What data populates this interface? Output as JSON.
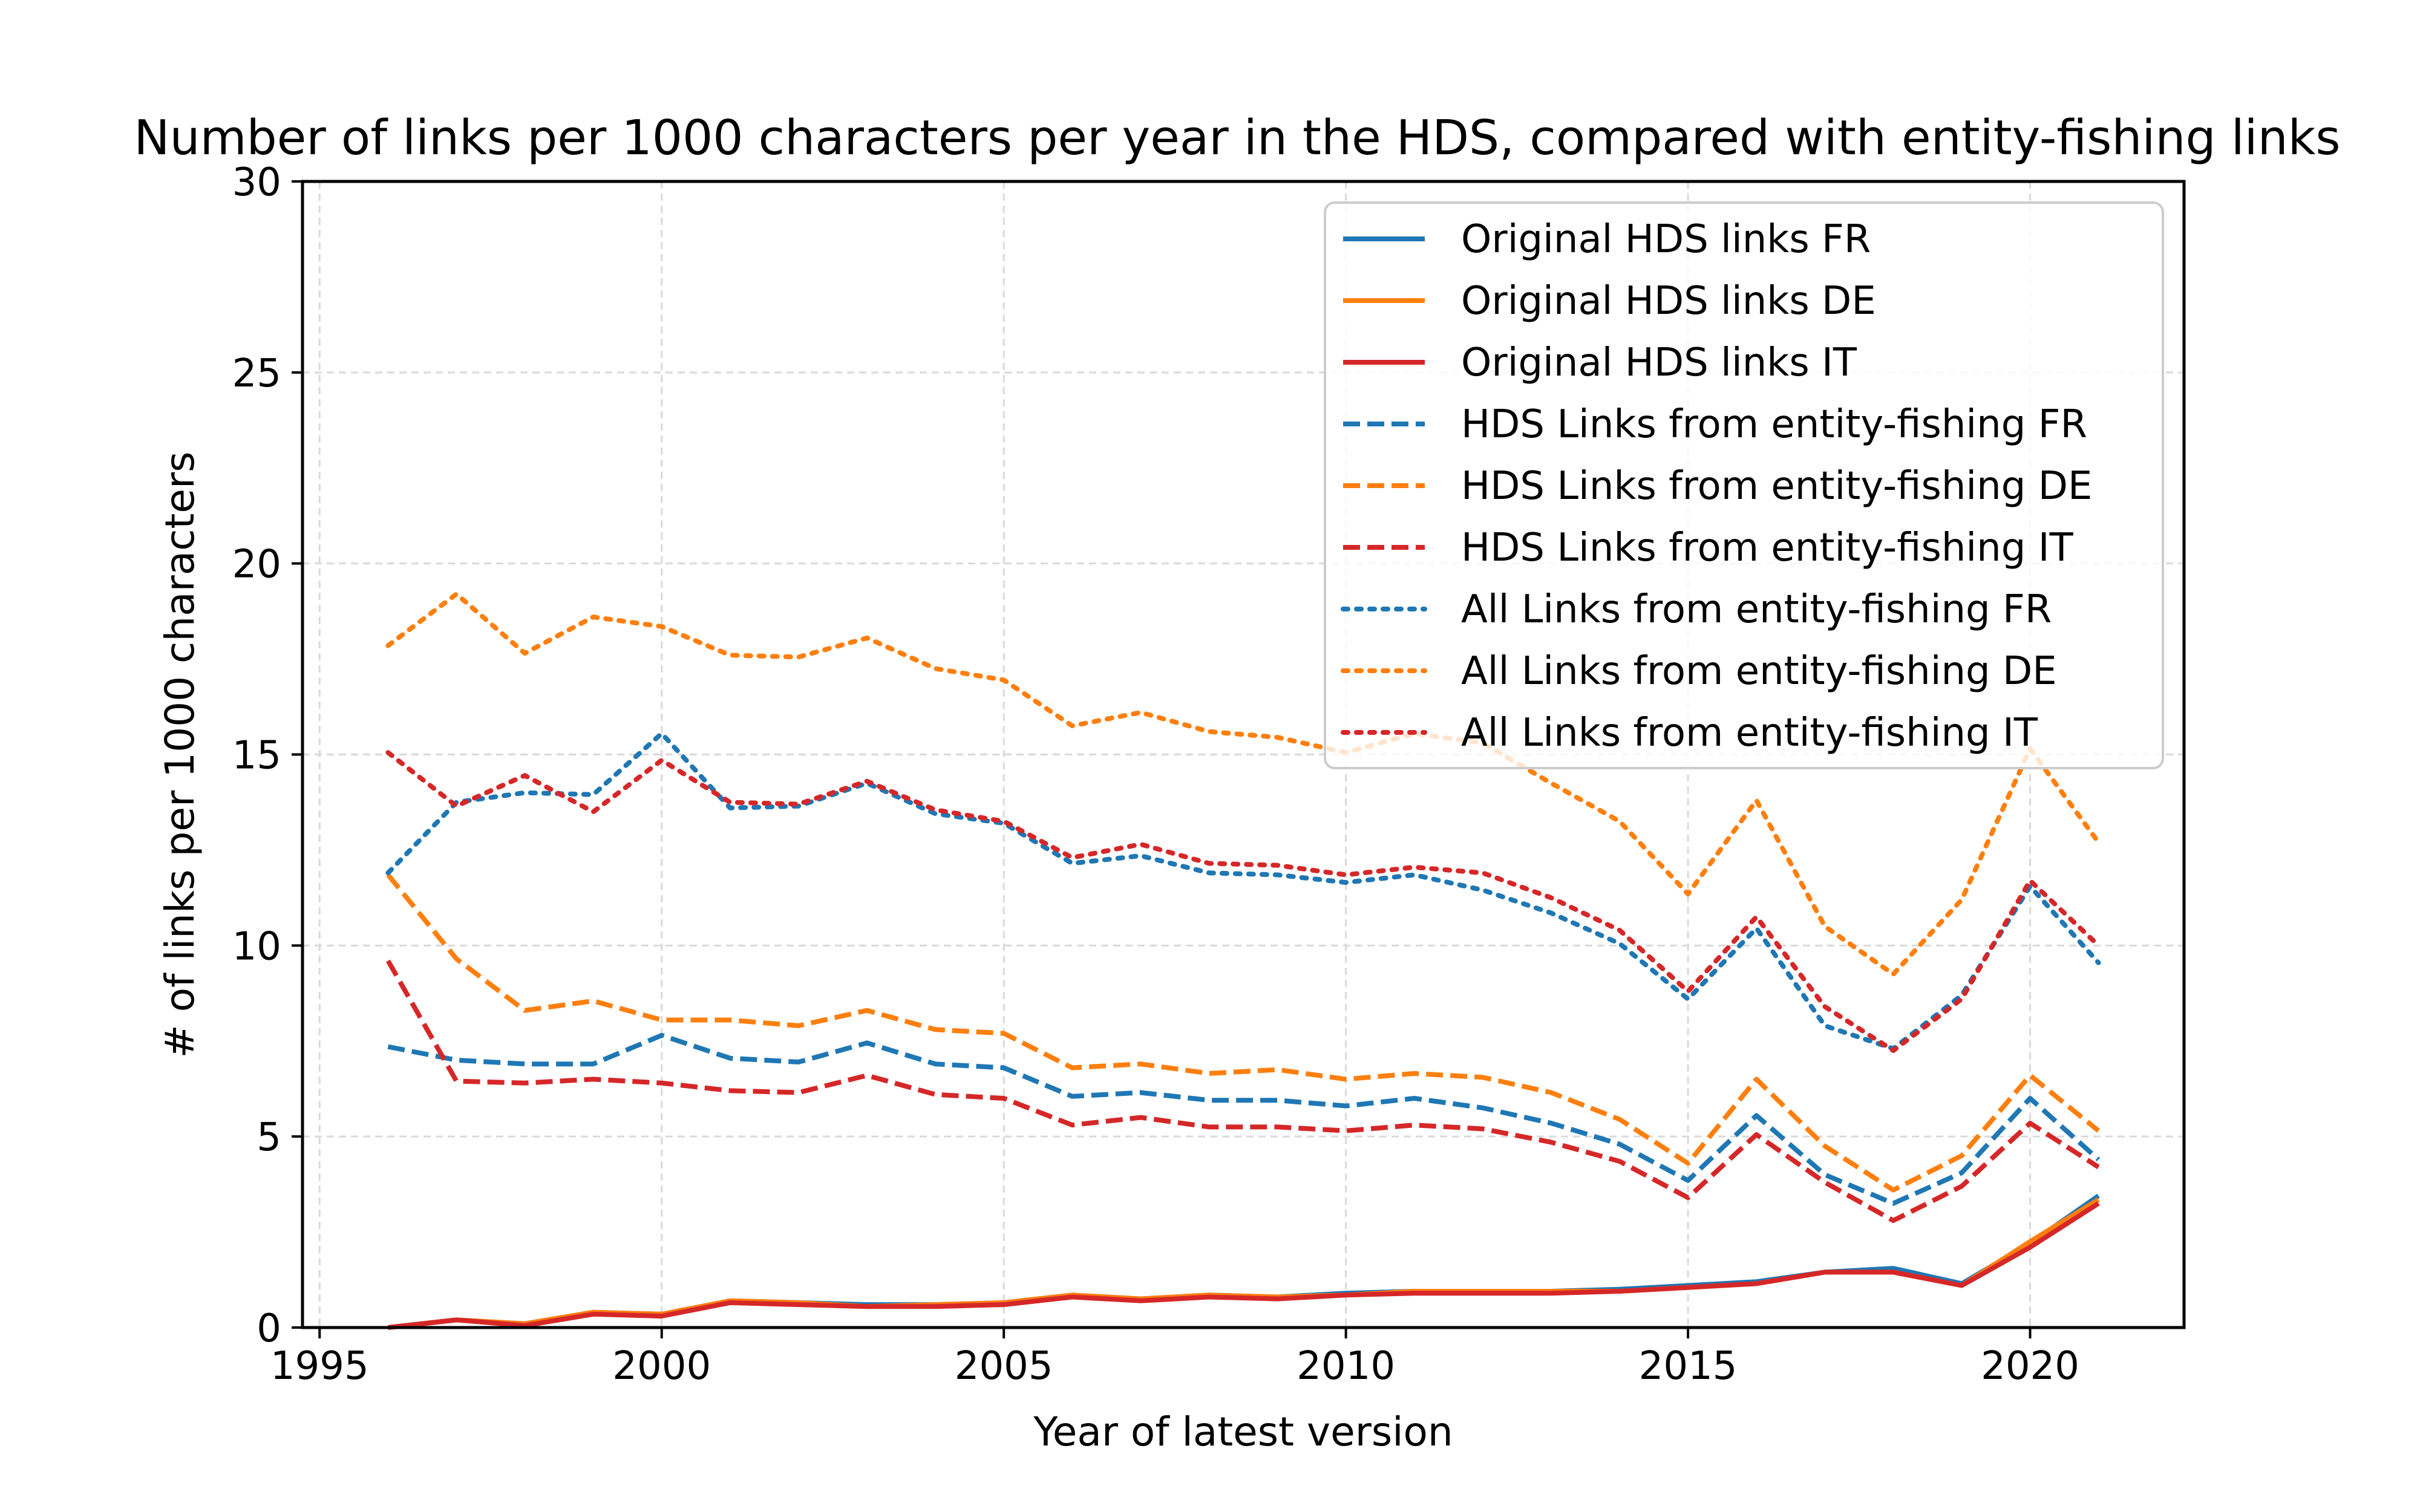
{
  "chart_data": {
    "type": "line",
    "title": "Number of links per 1000 characters per year in the HDS, compared with entity-fishing links",
    "xlabel": "Year of latest version",
    "ylabel": "# of links per 1000 characters",
    "xlim": [
      1994.75,
      2022.25
    ],
    "ylim": [
      0,
      30
    ],
    "xticks": [
      1995,
      2000,
      2005,
      2010,
      2015,
      2020
    ],
    "yticks": [
      0,
      5,
      10,
      15,
      20,
      25,
      30
    ],
    "grid": true,
    "legend_position": "top-right",
    "x": [
      1996,
      1997,
      1998,
      1999,
      2000,
      2001,
      2002,
      2003,
      2004,
      2005,
      2006,
      2007,
      2008,
      2009,
      2010,
      2011,
      2012,
      2013,
      2014,
      2015,
      2016,
      2017,
      2018,
      2019,
      2020,
      2021
    ],
    "series": [
      {
        "name": "Original HDS links FR",
        "color": "#1f77b4",
        "style": "solid",
        "values": [
          0.0,
          0.2,
          0.1,
          0.4,
          0.35,
          0.7,
          0.65,
          0.6,
          0.6,
          0.65,
          0.85,
          0.75,
          0.85,
          0.8,
          0.9,
          0.95,
          0.95,
          0.95,
          1.0,
          1.1,
          1.2,
          1.45,
          1.55,
          1.15,
          2.2,
          3.45
        ]
      },
      {
        "name": "Original HDS links DE",
        "color": "#ff7f0e",
        "style": "solid",
        "values": [
          0.0,
          0.2,
          0.1,
          0.4,
          0.35,
          0.7,
          0.65,
          0.55,
          0.6,
          0.65,
          0.85,
          0.75,
          0.85,
          0.8,
          0.85,
          0.95,
          0.95,
          0.95,
          0.95,
          1.05,
          1.15,
          1.45,
          1.45,
          1.1,
          2.25,
          3.35
        ]
      },
      {
        "name": "Original HDS links IT",
        "color": "#d62728",
        "style": "solid",
        "values": [
          0.0,
          0.2,
          0.05,
          0.35,
          0.3,
          0.65,
          0.6,
          0.55,
          0.55,
          0.6,
          0.8,
          0.7,
          0.8,
          0.75,
          0.85,
          0.9,
          0.9,
          0.9,
          0.95,
          1.05,
          1.15,
          1.45,
          1.45,
          1.1,
          2.1,
          3.25
        ]
      },
      {
        "name": "HDS Links from entity-fishing FR",
        "color": "#1f77b4",
        "style": "dashed",
        "values": [
          7.35,
          7.0,
          6.9,
          6.9,
          7.65,
          7.05,
          6.95,
          7.45,
          6.9,
          6.8,
          6.05,
          6.15,
          5.95,
          5.95,
          5.8,
          6.0,
          5.75,
          5.35,
          4.8,
          3.85,
          5.55,
          4.0,
          3.25,
          4.05,
          6.0,
          4.4
        ]
      },
      {
        "name": "HDS Links from entity-fishing DE",
        "color": "#ff7f0e",
        "style": "dashed",
        "values": [
          11.85,
          9.65,
          8.3,
          8.55,
          8.05,
          8.05,
          7.9,
          8.3,
          7.8,
          7.7,
          6.8,
          6.9,
          6.65,
          6.75,
          6.5,
          6.65,
          6.55,
          6.15,
          5.45,
          4.3,
          6.5,
          4.75,
          3.6,
          4.5,
          6.6,
          5.15
        ]
      },
      {
        "name": "HDS Links from entity-fishing IT",
        "color": "#d62728",
        "style": "dashed",
        "values": [
          9.6,
          6.45,
          6.4,
          6.5,
          6.4,
          6.2,
          6.15,
          6.6,
          6.1,
          6.0,
          5.3,
          5.5,
          5.25,
          5.25,
          5.15,
          5.3,
          5.2,
          4.85,
          4.35,
          3.4,
          5.05,
          3.8,
          2.8,
          3.7,
          5.35,
          4.2
        ]
      },
      {
        "name": "All Links from entity-fishing FR",
        "color": "#1f77b4",
        "style": "dotted",
        "values": [
          11.9,
          13.75,
          14.0,
          13.95,
          15.55,
          13.6,
          13.65,
          14.25,
          13.45,
          13.2,
          12.15,
          12.35,
          11.9,
          11.85,
          11.65,
          11.85,
          11.45,
          10.85,
          10.05,
          8.6,
          10.45,
          7.9,
          7.3,
          8.7,
          11.55,
          9.55
        ]
      },
      {
        "name": "All Links from entity-fishing DE",
        "color": "#ff7f0e",
        "style": "dotted",
        "values": [
          17.85,
          19.2,
          17.65,
          18.6,
          18.35,
          17.6,
          17.55,
          18.05,
          17.25,
          16.95,
          15.75,
          16.1,
          15.6,
          15.45,
          15.05,
          15.55,
          15.3,
          14.25,
          13.25,
          11.35,
          13.8,
          10.5,
          9.25,
          11.2,
          15.15,
          12.7
        ]
      },
      {
        "name": "All Links from entity-fishing IT",
        "color": "#d62728",
        "style": "dotted",
        "values": [
          15.05,
          13.65,
          14.45,
          13.5,
          14.85,
          13.75,
          13.7,
          14.3,
          13.55,
          13.25,
          12.3,
          12.65,
          12.15,
          12.1,
          11.85,
          12.05,
          11.9,
          11.25,
          10.4,
          8.8,
          10.75,
          8.4,
          7.25,
          8.6,
          11.7,
          10.0
        ]
      }
    ]
  }
}
